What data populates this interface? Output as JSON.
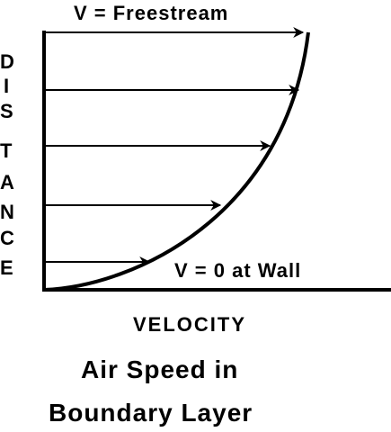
{
  "diagram": {
    "top_label": "V = Freestream",
    "bottom_label": "V = 0 at Wall",
    "y_axis_label": "DISTANCE",
    "x_axis_label": "VELOCITY",
    "caption_line1": "Air Speed in",
    "caption_line2": "Boundary Layer",
    "line_color": "#000000"
  }
}
